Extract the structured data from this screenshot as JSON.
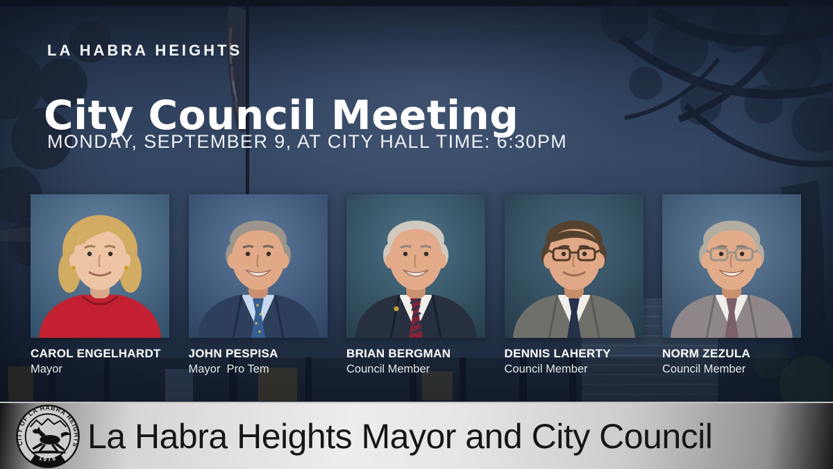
{
  "header": {
    "eyebrow": "LA HABRA HEIGHTS",
    "title": "City Council Meeting",
    "subtitle": "MONDAY, SEPTEMBER 9, AT CITY HALL TIME: 6:30PM"
  },
  "members": [
    {
      "name": "CAROL ENGELHARDT",
      "role": "Mayor",
      "portrait": {
        "bg_light": "#6a86a2",
        "bg_dark": "#31506b",
        "skin": "#edc4a4",
        "skin2": "#d9a98a",
        "hair": "#d2ac62",
        "hair_style": "volume",
        "jacket": "#c32132",
        "lapel": "#8e1624",
        "shirt": null,
        "tie": null,
        "tie_stripe": null,
        "tie_dots": false,
        "glasses": null,
        "earrings": true,
        "pin": false,
        "smile": "soft",
        "brow": "#9a7a4e"
      }
    },
    {
      "name": "JOHN PESPISA",
      "role": "Mayor  Pro Tem",
      "portrait": {
        "bg_light": "#5f7a9d",
        "bg_dark": "#2e4565",
        "skin": "#e2a987",
        "skin2": "#c98f6f",
        "hair": "#9b958c",
        "hair_style": "receded",
        "jacket": "#2e3f5c",
        "lapel": "#1f2c42",
        "shirt": "#c6d9ec",
        "tie": "#355f92",
        "tie_stripe": null,
        "tie_dots": true,
        "glasses": null,
        "earrings": false,
        "pin": false,
        "smile": "big",
        "brow": "#6e655a"
      }
    },
    {
      "name": "BRIAN BERGMAN",
      "role": "Council Member",
      "portrait": {
        "bg_light": "#4e7488",
        "bg_dark": "#27404f",
        "skin": "#e3ab8a",
        "skin2": "#ca926f",
        "hair": "#cfc9bf",
        "hair_style": "combed",
        "jacket": "#27303f",
        "lapel": "#181f2b",
        "shirt": "#f1f0ea",
        "tie": "#7e2433",
        "tie_stripe": "#24354f",
        "tie_dots": false,
        "glasses": null,
        "earrings": false,
        "pin": true,
        "smile": "big",
        "brow": "#8c8478"
      }
    },
    {
      "name": "DENNIS LAHERTY",
      "role": "Council Member",
      "portrait": {
        "bg_light": "#47687c",
        "bg_dark": "#263c4b",
        "skin": "#e0a886",
        "skin2": "#c78e6c",
        "hair": "#54422f",
        "hair_style": "sidepart",
        "jacket": "#70706a",
        "lapel": "#5a5a54",
        "shirt": "#efeee9",
        "tie": "#26324c",
        "tie_stripe": null,
        "tie_dots": false,
        "glasses": "#4c3a26",
        "earrings": false,
        "pin": false,
        "smile": "soft",
        "brow": "#4c3c2c"
      }
    },
    {
      "name": "NORM ZEZULA",
      "role": "Council Member",
      "portrait": {
        "bg_light": "#63809c",
        "bg_dark": "#334c65",
        "skin": "#e2ab8a",
        "skin2": "#c9916e",
        "hair": "#b3aca1",
        "hair_style": "receded",
        "jacket": "#8e8689",
        "lapel": "#6f686b",
        "shirt": "#f0eeea",
        "tie": "#7c6069",
        "tie_stripe": null,
        "tie_dots": false,
        "glasses": "#9a9288",
        "earrings": false,
        "pin": false,
        "smile": "big",
        "brow": "#837a6e"
      }
    }
  ],
  "banner": {
    "title": "La Habra Heights Mayor and City Council",
    "seal": {
      "ring_text": "CITY OF LA HABRA HEIGHTS",
      "year": "1978",
      "icon": "horse-icon"
    }
  },
  "colors": {
    "background_navy": "#2c3d58",
    "banner_silver": "#e8e8e8",
    "text_white": "#ffffff",
    "text_black": "#161616",
    "accent_red_top": "#c32132"
  }
}
